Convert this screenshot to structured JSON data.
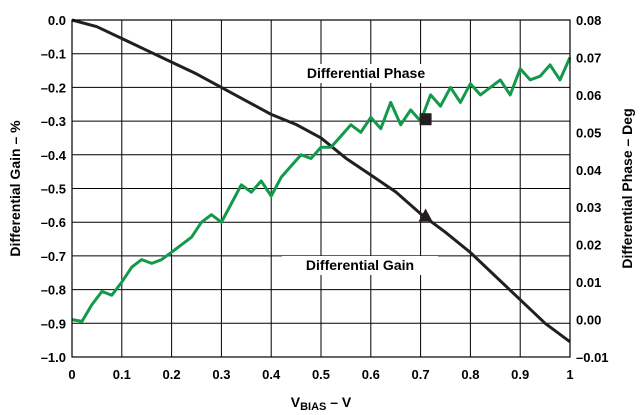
{
  "chart_data": {
    "type": "line",
    "xlabel_main": "V",
    "xlabel_sub": "BIAS",
    "xlabel_suffix": " – V",
    "ylabel_left": "Differential Gain – %",
    "ylabel_right": "Differential Phase – Deg",
    "xlim": [
      0,
      1
    ],
    "ylim_left": [
      -1.0,
      0.0
    ],
    "ylim_right": [
      -0.01,
      0.08
    ],
    "grid": true,
    "x_ticks": [
      "0",
      "0.1",
      "0.2",
      "0.3",
      "0.4",
      "0.5",
      "0.6",
      "0.7",
      "0.8",
      "0.9",
      "1"
    ],
    "y_left_ticks": [
      "0.0",
      "–0.1",
      "–0.2",
      "–0.3",
      "–0.4",
      "–0.5",
      "–0.6",
      "–0.7",
      "–0.8",
      "–0.9",
      "–1.0"
    ],
    "y_right_ticks": [
      "0.08",
      "0.07",
      "0.06",
      "0.05",
      "0.04",
      "0.03",
      "0.02",
      "0.01",
      "0.00",
      "–0.01"
    ],
    "annotations": {
      "phase_label": "Differential Phase",
      "gain_label": "Differential Gain"
    },
    "series": [
      {
        "name": "Differential Gain",
        "axis": "left",
        "color": "#231f20",
        "marker": "triangle",
        "marker_at": [
          0.71,
          -0.583
        ],
        "x": [
          0,
          0.05,
          0.1,
          0.15,
          0.2,
          0.25,
          0.3,
          0.35,
          0.4,
          0.45,
          0.5,
          0.55,
          0.6,
          0.65,
          0.7,
          0.75,
          0.8,
          0.85,
          0.9,
          0.95,
          1.0
        ],
        "y": [
          0.0,
          -0.02,
          -0.055,
          -0.09,
          -0.125,
          -0.16,
          -0.2,
          -0.24,
          -0.28,
          -0.31,
          -0.35,
          -0.41,
          -0.46,
          -0.51,
          -0.575,
          -0.63,
          -0.69,
          -0.76,
          -0.83,
          -0.9,
          -0.955
        ]
      },
      {
        "name": "Differential Phase",
        "axis": "right",
        "color": "#129a4a",
        "marker": "square",
        "marker_at": [
          0.71,
          0.0535
        ],
        "x": [
          0,
          0.02,
          0.04,
          0.06,
          0.08,
          0.1,
          0.12,
          0.14,
          0.16,
          0.18,
          0.2,
          0.22,
          0.24,
          0.26,
          0.28,
          0.3,
          0.32,
          0.34,
          0.36,
          0.38,
          0.4,
          0.42,
          0.44,
          0.46,
          0.48,
          0.5,
          0.52,
          0.54,
          0.56,
          0.58,
          0.6,
          0.62,
          0.64,
          0.66,
          0.68,
          0.7,
          0.72,
          0.74,
          0.76,
          0.78,
          0.8,
          0.82,
          0.84,
          0.86,
          0.88,
          0.9,
          0.92,
          0.94,
          0.96,
          0.98,
          1.0
        ],
        "y": [
          0.0,
          -0.0005,
          0.004,
          0.0075,
          0.0065,
          0.01,
          0.014,
          0.016,
          0.015,
          0.016,
          0.018,
          0.02,
          0.022,
          0.026,
          0.028,
          0.026,
          0.031,
          0.036,
          0.034,
          0.037,
          0.033,
          0.038,
          0.041,
          0.044,
          0.043,
          0.046,
          0.046,
          0.049,
          0.052,
          0.05,
          0.054,
          0.051,
          0.058,
          0.052,
          0.056,
          0.053,
          0.06,
          0.057,
          0.062,
          0.058,
          0.063,
          0.06,
          0.062,
          0.064,
          0.06,
          0.067,
          0.064,
          0.065,
          0.068,
          0.064,
          0.07
        ]
      }
    ]
  }
}
